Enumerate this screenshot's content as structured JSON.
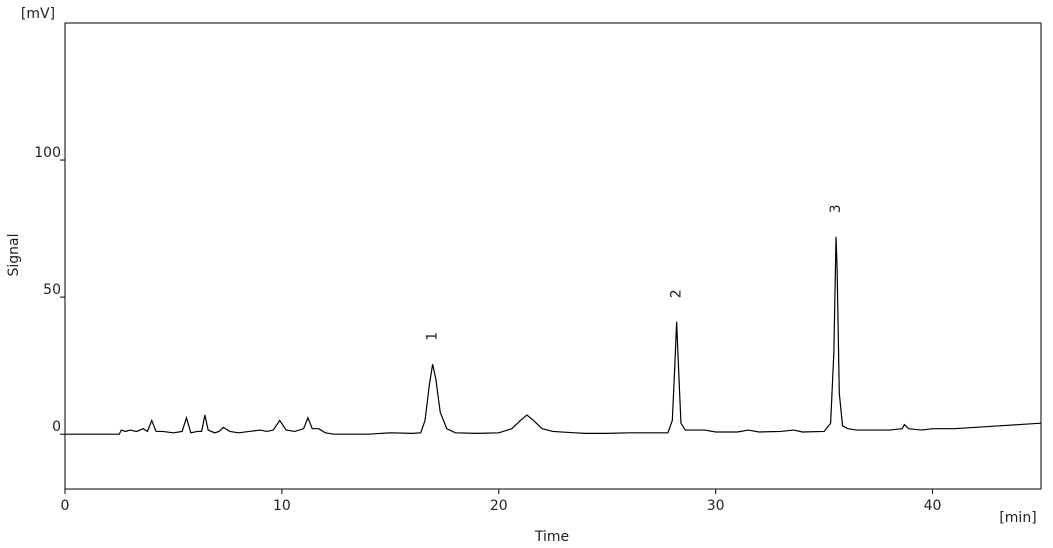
{
  "chart_data": {
    "type": "line",
    "x_label": "Time",
    "y_label": "Signal",
    "x_unit": "[min]",
    "y_unit": "[mV]",
    "xlim": [
      0,
      45
    ],
    "ylim": [
      -20,
      150
    ],
    "xticks": [
      0,
      10,
      20,
      30,
      40
    ],
    "yticks": [
      0,
      50,
      100
    ],
    "grid": false,
    "series": [
      {
        "color": "#000000",
        "x": [
          0,
          2.5,
          2.6,
          2.8,
          3.0,
          3.3,
          3.6,
          3.8,
          4.0,
          4.2,
          4.5,
          5.0,
          5.4,
          5.6,
          5.8,
          6.1,
          6.3,
          6.45,
          6.6,
          6.9,
          7.1,
          7.3,
          7.6,
          8.0,
          8.5,
          9.0,
          9.3,
          9.6,
          9.9,
          10.2,
          10.6,
          11.0,
          11.2,
          11.4,
          11.7,
          12.0,
          12.4,
          13,
          14,
          15,
          16,
          16.4,
          16.6,
          16.8,
          16.95,
          17.1,
          17.3,
          17.6,
          18,
          19,
          20,
          20.6,
          21.0,
          21.3,
          21.6,
          22.0,
          22.5,
          23.5,
          24,
          25,
          26,
          27,
          27.8,
          28.0,
          28.1,
          28.2,
          28.3,
          28.4,
          28.6,
          29.0,
          29.5,
          30,
          31,
          31.5,
          32,
          33,
          33.6,
          34,
          35,
          35.3,
          35.45,
          35.55,
          35.6,
          35.7,
          35.85,
          36.1,
          36.5,
          37,
          38,
          38.6,
          38.7,
          38.9,
          39.5,
          40,
          41,
          42,
          43,
          44,
          45
        ],
        "values": [
          0,
          0,
          1.5,
          1,
          1.5,
          1,
          2,
          1,
          5,
          1,
          1,
          0.5,
          1,
          6,
          0.5,
          1,
          1,
          7,
          1.5,
          0.5,
          1,
          2.5,
          1,
          0.5,
          1,
          1.5,
          1,
          1.5,
          5,
          1.5,
          1,
          2,
          6,
          2,
          2,
          0.5,
          0,
          0,
          0,
          0.5,
          0.3,
          0.5,
          5,
          18,
          25.5,
          20,
          8,
          2,
          0.5,
          0.3,
          0.5,
          2,
          5,
          7,
          5,
          2,
          1,
          0.5,
          0.3,
          0.3,
          0.5,
          0.5,
          0.5,
          5,
          22,
          41,
          22,
          4,
          1.5,
          1.5,
          1.5,
          0.8,
          0.8,
          1.5,
          0.8,
          1,
          1.5,
          0.8,
          1,
          4,
          30,
          72,
          60,
          15,
          3,
          2,
          1.5,
          1.5,
          1.5,
          2,
          3.5,
          2,
          1.5,
          2,
          2,
          2.5,
          3,
          3.5,
          4
        ]
      }
    ],
    "annotations": [
      {
        "text": "1",
        "x": 16.95,
        "y": 25.5
      },
      {
        "text": "2",
        "x": 28.2,
        "y": 41
      },
      {
        "text": "3",
        "x": 35.55,
        "y": 72
      }
    ]
  }
}
